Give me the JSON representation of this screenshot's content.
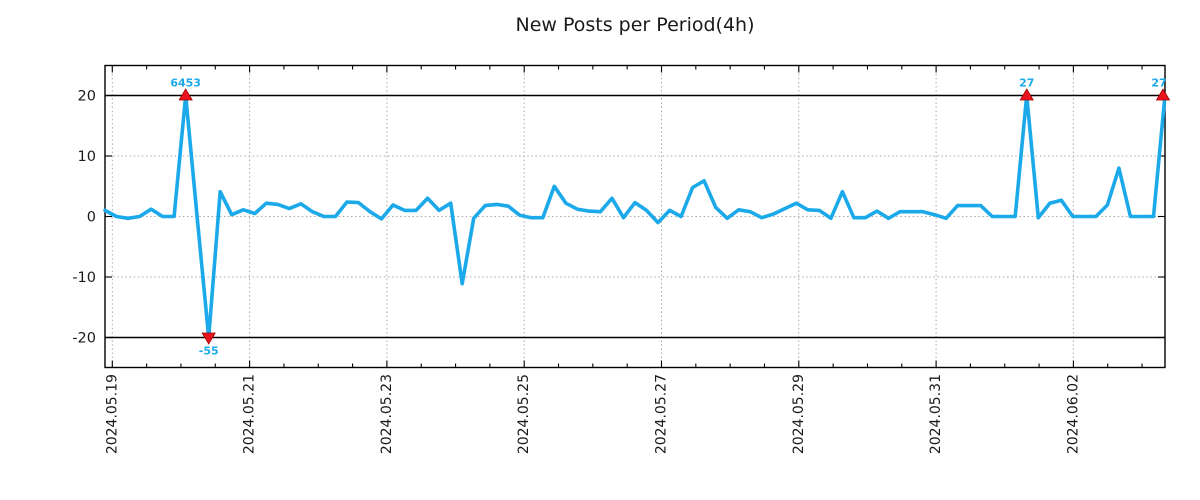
{
  "chart": {
    "title": "New Posts per Period(4h)",
    "colors": {
      "line": "#1ba9ea",
      "annotation_text": "#1ba9ea",
      "marker_fill": "#e9141d",
      "marker_edge": "#a00000",
      "grid": "#a8a8a8",
      "axis": "#000000",
      "reference_line": "#000000",
      "tick_label": "#1a1a1a",
      "background": "#ffffff"
    }
  },
  "chart_data": {
    "type": "line",
    "title": "New Posts per Period(4h)",
    "xlabel": "",
    "ylabel": "",
    "period": "4h",
    "start": "2024-05-18 20:00",
    "interval_hours": 4,
    "values": [
      1.0,
      0.0,
      -0.3,
      0.0,
      1.2,
      0.0,
      0.0,
      6453,
      -0.2,
      -55,
      4.1,
      0.3,
      1.1,
      0.5,
      2.2,
      2.0,
      1.3,
      2.1,
      0.8,
      0.0,
      0.0,
      2.4,
      2.3,
      0.8,
      -0.4,
      1.9,
      1.0,
      1.0,
      3.0,
      1.0,
      2.2,
      -11.1,
      -0.3,
      1.8,
      2.0,
      1.7,
      0.2,
      -0.2,
      -0.2,
      5.0,
      2.2,
      1.2,
      0.9,
      0.8,
      3.0,
      -0.2,
      2.3,
      1.0,
      -1.0,
      1.0,
      0.0,
      4.8,
      5.9,
      1.5,
      -0.3,
      1.1,
      0.8,
      -0.2,
      0.4,
      1.3,
      2.2,
      1.1,
      1.0,
      -0.3,
      4.1,
      -0.2,
      -0.2,
      0.9,
      -0.3,
      0.8,
      0.8,
      0.8,
      0.3,
      -0.3,
      1.8,
      1.8,
      1.8,
      0.0,
      0.0,
      0.0,
      27,
      -0.2,
      2.2,
      2.7,
      0.0,
      0.0,
      0.0,
      1.9,
      8.0,
      0.0,
      0.0,
      0.0,
      27
    ],
    "clip": 20,
    "ylim": [
      -25,
      25
    ],
    "y_ticks": [
      -20,
      -10,
      0,
      10,
      20
    ],
    "reference_lines_y": [
      20,
      -20
    ],
    "x_tick_labels": [
      "2024.05.19",
      "2024.05.21",
      "2024.05.23",
      "2024.05.25",
      "2024.05.27",
      "2024.05.29",
      "2024.05.31",
      "2024.06.02"
    ],
    "x_major_tick_days": 2,
    "x_minor_tick_hours": 12,
    "grid": true,
    "legend": false,
    "annotations": [
      {
        "index": 7,
        "label": "6453",
        "direction": "up"
      },
      {
        "index": 9,
        "label": "-55",
        "direction": "down"
      },
      {
        "index": 80,
        "label": "27",
        "direction": "up"
      },
      {
        "index": 92,
        "label": "27",
        "direction": "up"
      }
    ]
  }
}
